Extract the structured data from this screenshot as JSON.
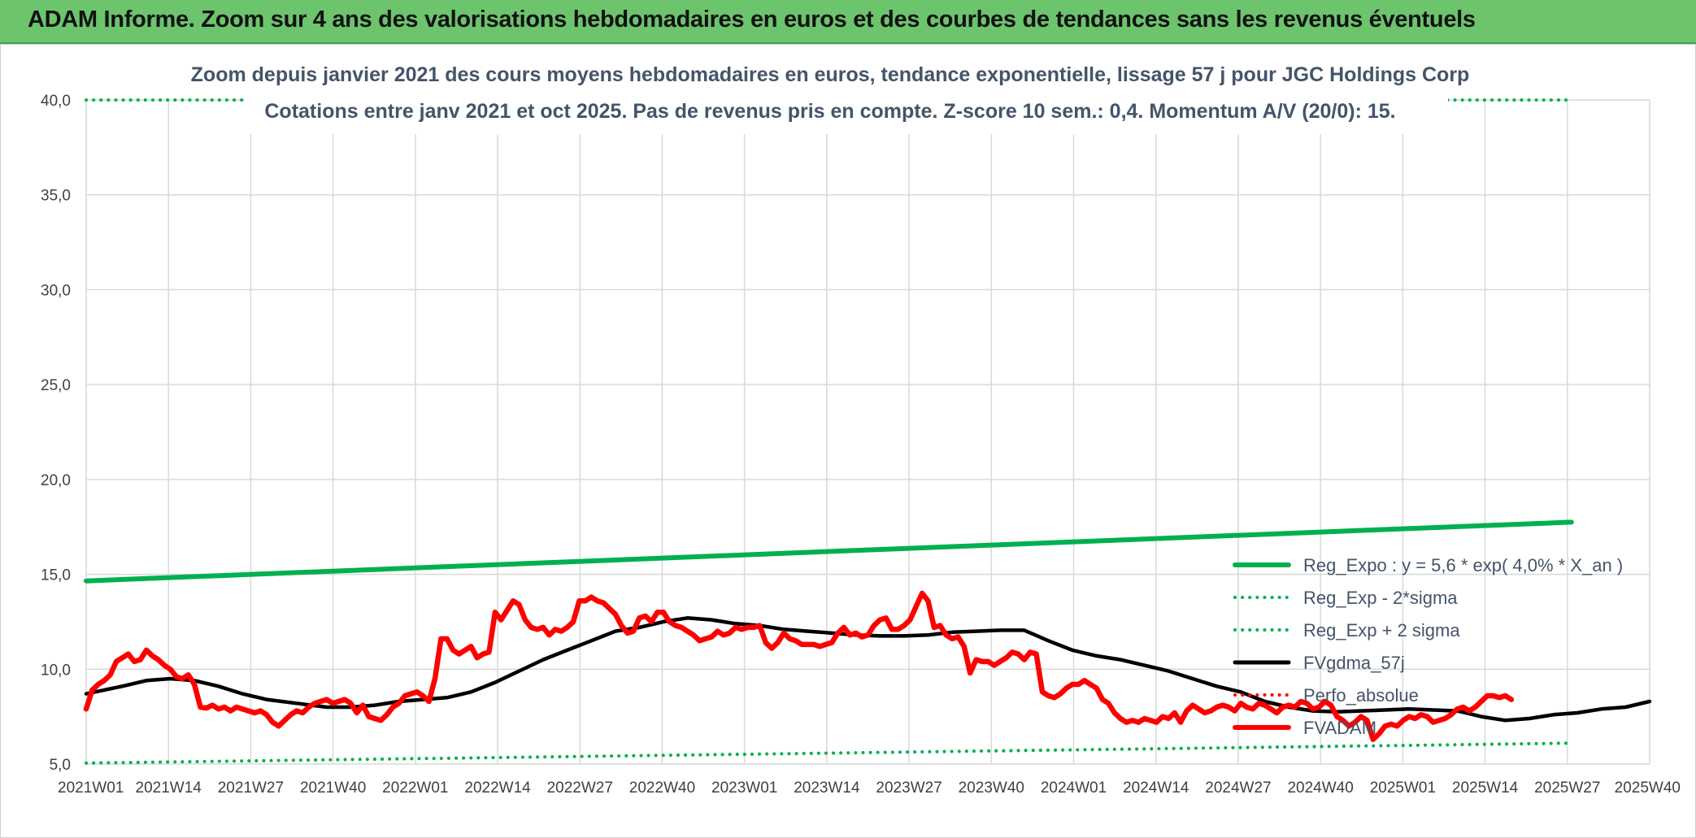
{
  "header": {
    "title": "ADAM Informe. Zoom sur 4 ans des valorisations hebdomadaires en euros et des courbes de tendances sans les revenus éventuels"
  },
  "chart_data": {
    "type": "line",
    "title_line1": "Zoom depuis janvier 2021 des cours moyens hebdomadaires en euros, tendance exponentielle, lissage 57 j pour JGC Holdings Corp",
    "title_line2": "Cotations entre janv 2021 et oct 2025. Pas de revenus pris en compte. Z-score 10 sem.: 0,4. Momentum A/V (20/0): 15.",
    "ylim": [
      5,
      40
    ],
    "y_ticks": [
      "5,0",
      "10,0",
      "15,0",
      "20,0",
      "25,0",
      "30,0",
      "35,0",
      "40,0"
    ],
    "x_ticks": [
      "2021W01",
      "2021W14",
      "2021W27",
      "2021W40",
      "2022W01",
      "2022W14",
      "2022W27",
      "2022W40",
      "2023W01",
      "2023W14",
      "2023W27",
      "2023W40",
      "2024W01",
      "2024W14",
      "2024W27",
      "2024W40",
      "2025W01",
      "2025W14",
      "2025W27",
      "2025W40"
    ],
    "grid": true,
    "legend_position": "right",
    "colors": {
      "green": "#00b050",
      "black": "#000000",
      "red": "#ff0000"
    },
    "series": [
      {
        "name": "Reg_Expo : y = 5,6 * exp( 4,0% *  X_an )",
        "style": "solid-thick",
        "color": "#00b050",
        "points": [
          [
            0,
            14.65
          ],
          [
            247,
            17.75
          ]
        ]
      },
      {
        "name": "Reg_Exp - 2*sigma",
        "style": "dotted",
        "color": "#00b050",
        "points": [
          [
            0,
            5.05
          ],
          [
            247,
            6.1
          ]
        ]
      },
      {
        "name": "Reg_Exp + 2 sigma",
        "style": "dotted",
        "color": "#00b050",
        "points": [
          [
            0,
            40.0
          ],
          [
            247,
            40.0
          ]
        ]
      },
      {
        "name": "FVgdma_57j",
        "style": "solid",
        "color": "#000000",
        "points": [
          [
            0,
            8.7
          ],
          [
            6,
            9.1
          ],
          [
            10,
            9.4
          ],
          [
            14,
            9.5
          ],
          [
            18,
            9.4
          ],
          [
            22,
            9.1
          ],
          [
            26,
            8.7
          ],
          [
            30,
            8.4
          ],
          [
            35,
            8.2
          ],
          [
            40,
            8.0
          ],
          [
            44,
            8.0
          ],
          [
            48,
            8.1
          ],
          [
            52,
            8.3
          ],
          [
            56,
            8.4
          ],
          [
            60,
            8.5
          ],
          [
            64,
            8.8
          ],
          [
            68,
            9.3
          ],
          [
            72,
            9.9
          ],
          [
            76,
            10.5
          ],
          [
            80,
            11.0
          ],
          [
            84,
            11.5
          ],
          [
            88,
            12.0
          ],
          [
            92,
            12.2
          ],
          [
            96,
            12.5
          ],
          [
            100,
            12.7
          ],
          [
            104,
            12.6
          ],
          [
            108,
            12.4
          ],
          [
            112,
            12.3
          ],
          [
            116,
            12.1
          ],
          [
            120,
            12.0
          ],
          [
            124,
            11.9
          ],
          [
            128,
            11.8
          ],
          [
            132,
            11.75
          ],
          [
            136,
            11.75
          ],
          [
            140,
            11.8
          ],
          [
            144,
            11.95
          ],
          [
            148,
            12.0
          ],
          [
            152,
            12.05
          ],
          [
            156,
            12.05
          ],
          [
            160,
            11.5
          ],
          [
            164,
            11.0
          ],
          [
            168,
            10.7
          ],
          [
            172,
            10.5
          ],
          [
            176,
            10.2
          ],
          [
            180,
            9.9
          ],
          [
            184,
            9.5
          ],
          [
            188,
            9.1
          ],
          [
            192,
            8.8
          ],
          [
            196,
            8.3
          ],
          [
            200,
            8.0
          ],
          [
            204,
            7.8
          ],
          [
            208,
            7.75
          ],
          [
            212,
            7.8
          ],
          [
            216,
            7.85
          ],
          [
            220,
            7.9
          ],
          [
            224,
            7.85
          ],
          [
            228,
            7.8
          ],
          [
            232,
            7.5
          ],
          [
            236,
            7.3
          ],
          [
            240,
            7.4
          ],
          [
            244,
            7.6
          ],
          [
            248,
            7.7
          ],
          [
            252,
            7.9
          ],
          [
            256,
            8.0
          ],
          [
            260,
            8.3
          ]
        ]
      },
      {
        "name": "Perfo_absolue",
        "style": "dotted",
        "color": "#ff0000",
        "points": []
      },
      {
        "name": "FVADAM",
        "style": "solid-thick",
        "color": "#ff0000",
        "points": [
          [
            0,
            7.9
          ],
          [
            1,
            8.9
          ],
          [
            2,
            9.2
          ],
          [
            3,
            9.4
          ],
          [
            4,
            9.7
          ],
          [
            5,
            10.4
          ],
          [
            6,
            10.6
          ],
          [
            7,
            10.8
          ],
          [
            8,
            10.4
          ],
          [
            9,
            10.5
          ],
          [
            10,
            11.0
          ],
          [
            11,
            10.7
          ],
          [
            12,
            10.5
          ],
          [
            13,
            10.2
          ],
          [
            14,
            10.0
          ],
          [
            15,
            9.6
          ],
          [
            16,
            9.5
          ],
          [
            17,
            9.7
          ],
          [
            18,
            9.2
          ],
          [
            19,
            8.0
          ],
          [
            20,
            7.95
          ],
          [
            21,
            8.1
          ],
          [
            22,
            7.9
          ],
          [
            23,
            8.0
          ],
          [
            24,
            7.8
          ],
          [
            25,
            8.0
          ],
          [
            26,
            7.9
          ],
          [
            27,
            7.8
          ],
          [
            28,
            7.7
          ],
          [
            29,
            7.8
          ],
          [
            30,
            7.6
          ],
          [
            31,
            7.2
          ],
          [
            32,
            7.0
          ],
          [
            33,
            7.3
          ],
          [
            34,
            7.6
          ],
          [
            35,
            7.8
          ],
          [
            36,
            7.7
          ],
          [
            37,
            8.0
          ],
          [
            38,
            8.2
          ],
          [
            39,
            8.3
          ],
          [
            40,
            8.4
          ],
          [
            41,
            8.2
          ],
          [
            42,
            8.3
          ],
          [
            43,
            8.4
          ],
          [
            44,
            8.2
          ],
          [
            45,
            7.7
          ],
          [
            46,
            8.1
          ],
          [
            47,
            7.5
          ],
          [
            48,
            7.4
          ],
          [
            49,
            7.3
          ],
          [
            50,
            7.6
          ],
          [
            51,
            8.0
          ],
          [
            52,
            8.2
          ],
          [
            53,
            8.6
          ],
          [
            54,
            8.7
          ],
          [
            55,
            8.8
          ],
          [
            56,
            8.6
          ],
          [
            57,
            8.3
          ],
          [
            58,
            9.5
          ],
          [
            59,
            11.6
          ],
          [
            60,
            11.6
          ],
          [
            61,
            11.0
          ],
          [
            62,
            10.8
          ],
          [
            63,
            11.0
          ],
          [
            64,
            11.2
          ],
          [
            65,
            10.6
          ],
          [
            66,
            10.8
          ],
          [
            67,
            10.9
          ],
          [
            68,
            13.0
          ],
          [
            69,
            12.6
          ],
          [
            70,
            13.1
          ],
          [
            71,
            13.6
          ],
          [
            72,
            13.4
          ],
          [
            73,
            12.6
          ],
          [
            74,
            12.2
          ],
          [
            75,
            12.1
          ],
          [
            76,
            12.2
          ],
          [
            77,
            11.8
          ],
          [
            78,
            12.1
          ],
          [
            79,
            12.0
          ],
          [
            80,
            12.2
          ],
          [
            81,
            12.5
          ],
          [
            82,
            13.6
          ],
          [
            83,
            13.6
          ],
          [
            84,
            13.8
          ],
          [
            85,
            13.6
          ],
          [
            86,
            13.5
          ],
          [
            87,
            13.2
          ],
          [
            88,
            12.9
          ],
          [
            89,
            12.3
          ],
          [
            90,
            11.9
          ],
          [
            91,
            12.0
          ],
          [
            92,
            12.7
          ],
          [
            93,
            12.8
          ],
          [
            94,
            12.5
          ],
          [
            95,
            13.0
          ],
          [
            96,
            13.0
          ],
          [
            97,
            12.5
          ],
          [
            98,
            12.3
          ],
          [
            99,
            12.2
          ],
          [
            100,
            12.0
          ],
          [
            101,
            11.8
          ],
          [
            102,
            11.5
          ],
          [
            103,
            11.6
          ],
          [
            104,
            11.7
          ],
          [
            105,
            12.0
          ],
          [
            106,
            11.8
          ],
          [
            107,
            11.9
          ],
          [
            108,
            12.2
          ],
          [
            109,
            12.1
          ],
          [
            110,
            12.2
          ],
          [
            111,
            12.2
          ],
          [
            112,
            12.3
          ],
          [
            113,
            11.4
          ],
          [
            114,
            11.1
          ],
          [
            115,
            11.4
          ],
          [
            116,
            11.9
          ],
          [
            117,
            11.6
          ],
          [
            118,
            11.5
          ],
          [
            119,
            11.3
          ],
          [
            120,
            11.3
          ],
          [
            121,
            11.3
          ],
          [
            122,
            11.2
          ],
          [
            123,
            11.3
          ],
          [
            124,
            11.4
          ],
          [
            125,
            11.9
          ],
          [
            126,
            12.2
          ],
          [
            127,
            11.8
          ],
          [
            128,
            11.9
          ],
          [
            129,
            11.7
          ],
          [
            130,
            11.8
          ],
          [
            131,
            12.3
          ],
          [
            132,
            12.6
          ],
          [
            133,
            12.7
          ],
          [
            134,
            12.1
          ],
          [
            135,
            12.1
          ],
          [
            136,
            12.3
          ],
          [
            137,
            12.6
          ],
          [
            138,
            13.3
          ],
          [
            139,
            14.0
          ],
          [
            140,
            13.6
          ],
          [
            141,
            12.2
          ],
          [
            142,
            12.3
          ],
          [
            143,
            11.8
          ],
          [
            144,
            11.6
          ],
          [
            145,
            11.7
          ],
          [
            146,
            11.2
          ],
          [
            147,
            9.8
          ],
          [
            148,
            10.5
          ],
          [
            149,
            10.4
          ],
          [
            150,
            10.4
          ],
          [
            151,
            10.2
          ],
          [
            152,
            10.4
          ],
          [
            153,
            10.6
          ],
          [
            154,
            10.9
          ],
          [
            155,
            10.8
          ],
          [
            156,
            10.5
          ],
          [
            157,
            10.9
          ],
          [
            158,
            10.8
          ],
          [
            159,
            8.8
          ],
          [
            160,
            8.6
          ],
          [
            161,
            8.5
          ],
          [
            162,
            8.7
          ],
          [
            163,
            9.0
          ],
          [
            164,
            9.2
          ],
          [
            165,
            9.2
          ],
          [
            166,
            9.4
          ],
          [
            167,
            9.2
          ],
          [
            168,
            9.0
          ],
          [
            169,
            8.4
          ],
          [
            170,
            8.2
          ],
          [
            171,
            7.7
          ],
          [
            172,
            7.4
          ],
          [
            173,
            7.2
          ],
          [
            174,
            7.3
          ],
          [
            175,
            7.2
          ],
          [
            176,
            7.4
          ],
          [
            177,
            7.3
          ],
          [
            178,
            7.2
          ],
          [
            179,
            7.5
          ],
          [
            180,
            7.4
          ],
          [
            181,
            7.7
          ],
          [
            182,
            7.2
          ],
          [
            183,
            7.8
          ],
          [
            184,
            8.1
          ],
          [
            185,
            7.9
          ],
          [
            186,
            7.7
          ],
          [
            187,
            7.8
          ],
          [
            188,
            8.0
          ],
          [
            189,
            8.1
          ],
          [
            190,
            8.0
          ],
          [
            191,
            7.8
          ],
          [
            192,
            8.2
          ],
          [
            193,
            8.0
          ],
          [
            194,
            7.9
          ],
          [
            195,
            8.2
          ],
          [
            196,
            8.1
          ],
          [
            197,
            7.9
          ],
          [
            198,
            7.7
          ],
          [
            199,
            8.0
          ],
          [
            200,
            8.1
          ],
          [
            201,
            8.0
          ],
          [
            202,
            8.3
          ],
          [
            203,
            8.2
          ],
          [
            204,
            7.9
          ],
          [
            205,
            8.0
          ],
          [
            206,
            8.3
          ],
          [
            207,
            8.1
          ],
          [
            208,
            7.5
          ],
          [
            209,
            7.3
          ],
          [
            210,
            7.0
          ],
          [
            211,
            7.2
          ],
          [
            212,
            7.5
          ],
          [
            213,
            7.3
          ],
          [
            214,
            6.3
          ],
          [
            215,
            6.6
          ],
          [
            216,
            7.0
          ],
          [
            217,
            7.1
          ],
          [
            218,
            7.0
          ],
          [
            219,
            7.3
          ],
          [
            220,
            7.5
          ],
          [
            221,
            7.4
          ],
          [
            222,
            7.6
          ],
          [
            223,
            7.5
          ],
          [
            224,
            7.2
          ],
          [
            225,
            7.3
          ],
          [
            226,
            7.4
          ],
          [
            227,
            7.6
          ],
          [
            228,
            7.9
          ],
          [
            229,
            8.0
          ],
          [
            230,
            7.8
          ],
          [
            231,
            8.0
          ],
          [
            232,
            8.3
          ],
          [
            233,
            8.6
          ],
          [
            234,
            8.6
          ],
          [
            235,
            8.5
          ],
          [
            236,
            8.6
          ],
          [
            237,
            8.4
          ]
        ]
      }
    ]
  }
}
